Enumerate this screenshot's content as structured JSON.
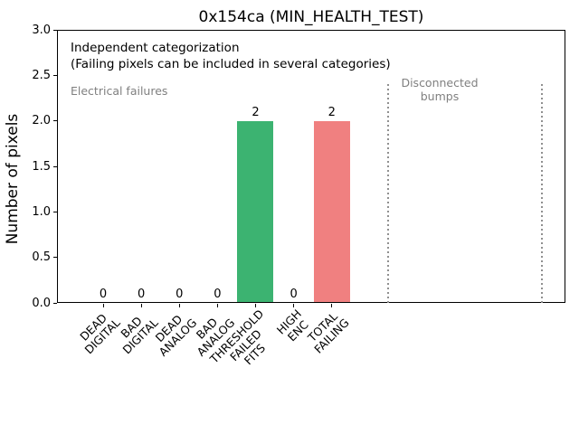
{
  "chart_data": {
    "type": "bar",
    "title": "0x154ca (MIN_HEALTH_TEST)",
    "xlabel": "",
    "ylabel": "Number of pixels",
    "ylim": [
      0.0,
      3.0
    ],
    "ytick_step": 0.5,
    "grid": false,
    "legend": null,
    "categories": [
      [
        "DEAD",
        "DIGITAL"
      ],
      [
        "BAD",
        "DIGITAL"
      ],
      [
        "DEAD",
        "ANALOG"
      ],
      [
        "BAD",
        "ANALOG"
      ],
      [
        "THRESHOLD",
        "FAILED",
        "FITS"
      ],
      [
        "HIGH",
        "ENC"
      ],
      [
        "TOTAL",
        "FAILING"
      ]
    ],
    "values": [
      0,
      0,
      0,
      0,
      2,
      0,
      2
    ],
    "value_labels": [
      "0",
      "0",
      "0",
      "0",
      "2",
      "0",
      "2"
    ],
    "bar_colors": [
      null,
      null,
      null,
      null,
      "#3cb371",
      null,
      "#f08080"
    ],
    "annotations": {
      "note_line1": "Independent categorization",
      "note_line2": "(Failing pixels can be included in several categories)",
      "left_section_label": "Electrical failures",
      "right_section_label_lines": [
        "Disconnected",
        "bumps"
      ],
      "section_text_color": "#808080"
    },
    "separators": {
      "style": "dotted",
      "color": "#909090",
      "x_indices": [
        7.48,
        11.52
      ],
      "y_top": 2.4
    },
    "axis_color": "#000000",
    "text_color": "#000000",
    "background_color": "#ffffff"
  }
}
